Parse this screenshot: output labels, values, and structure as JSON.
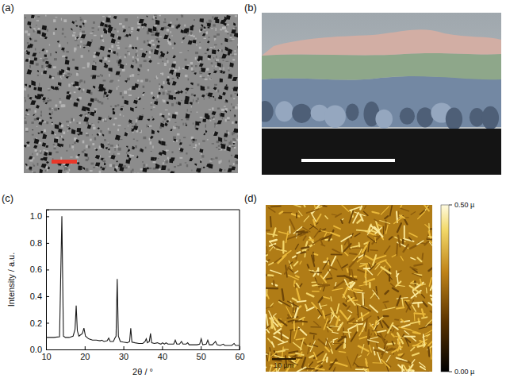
{
  "panels": [
    {
      "label": "(a)"
    },
    {
      "label": "(b)"
    },
    {
      "label": "(c)"
    },
    {
      "label": "(d)",
      "scale_bar": "10 µm",
      "color_bar": {
        "range": [
          0,
          0.5
        ],
        "ticks": [
          {
            "value": 0.5,
            "label": "0.50 µ"
          },
          {
            "value": 0,
            "label": "0.00 µ"
          }
        ]
      }
    }
  ],
  "chart_data": {
    "type": "line",
    "x_label": "2θ / °",
    "y_label": "Intensity / a.u.",
    "color": "#1a1a1a",
    "x": [
      10,
      12,
      13.5,
      14.1,
      14.5,
      15,
      16,
      17,
      17.5,
      17.8,
      18.1,
      18.5,
      19.4,
      19.8,
      20.2,
      21,
      22,
      23,
      24,
      24.4,
      25,
      25.8,
      26.2,
      26.6,
      27.4,
      27.8,
      28.1,
      28.4,
      28.7,
      29.2,
      30,
      31,
      31.6,
      31.9,
      32.2,
      33,
      34,
      35,
      35.6,
      35.9,
      36.2,
      36.7,
      37.0,
      37.3,
      38,
      38.8,
      39.2,
      39.7,
      40.1,
      40.6,
      41.0,
      41.5,
      42,
      43,
      43.4,
      43.8,
      44.5,
      45.0,
      45.4,
      46.2,
      46.6,
      47,
      48,
      49,
      49.7,
      50.1,
      50.5,
      51.4,
      51.8,
      52.2,
      53,
      53.8,
      54.2,
      55,
      55.8,
      56.2,
      57,
      58,
      58.6,
      59,
      60
    ],
    "values": [
      0.09,
      0.09,
      0.095,
      1.0,
      0.1,
      0.09,
      0.09,
      0.1,
      0.15,
      0.33,
      0.14,
      0.1,
      0.12,
      0.16,
      0.1,
      0.08,
      0.07,
      0.07,
      0.065,
      0.07,
      0.06,
      0.065,
      0.085,
      0.06,
      0.06,
      0.085,
      0.1,
      0.53,
      0.1,
      0.06,
      0.055,
      0.05,
      0.06,
      0.16,
      0.055,
      0.05,
      0.045,
      0.045,
      0.06,
      0.08,
      0.05,
      0.06,
      0.12,
      0.05,
      0.045,
      0.05,
      0.045,
      0.04,
      0.05,
      0.04,
      0.05,
      0.04,
      0.04,
      0.04,
      0.07,
      0.04,
      0.04,
      0.06,
      0.04,
      0.04,
      0.05,
      0.035,
      0.035,
      0.035,
      0.04,
      0.08,
      0.035,
      0.04,
      0.07,
      0.035,
      0.035,
      0.06,
      0.035,
      0.03,
      0.04,
      0.03,
      0.03,
      0.03,
      0.045,
      0.03,
      0.03
    ],
    "xlim": [
      10,
      60
    ],
    "xticks": [
      10,
      20,
      30,
      40,
      50,
      60
    ],
    "ylim": [
      0,
      1.05
    ],
    "yticks": [
      {
        "value": 0,
        "label": "0.0"
      },
      {
        "value": 0.2,
        "label": "0.2"
      },
      {
        "value": 0.4,
        "label": "0.4"
      },
      {
        "value": 0.6,
        "label": "0.6"
      },
      {
        "value": 0.8,
        "label": "0.8"
      },
      {
        "value": 1.0,
        "label": "1.0"
      }
    ]
  }
}
